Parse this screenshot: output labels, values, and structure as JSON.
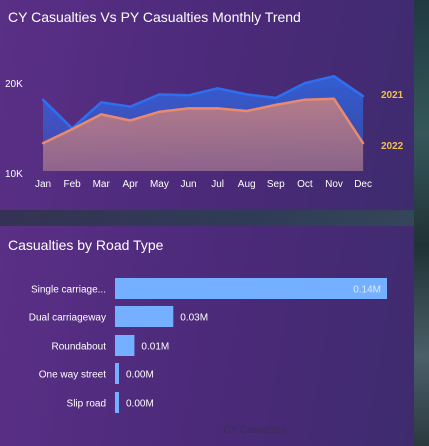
{
  "colors": {
    "cy_line": "#2d6ff0",
    "py_line": "#e98a6e",
    "bar": "#74b0ff",
    "series_label": "#f0c04d"
  },
  "trend": {
    "title": "CY Casualties Vs PY Casualties Monthly Trend"
  },
  "road_type": {
    "title": "Casualties by Road Type",
    "footer": "CY Casualties"
  },
  "chart_data": [
    {
      "type": "area",
      "title": "CY Casualties Vs PY Casualties Monthly Trend",
      "categories": [
        "Jan",
        "Feb",
        "Mar",
        "Apr",
        "May",
        "Jun",
        "Jul",
        "Aug",
        "Sep",
        "Oct",
        "Nov",
        "Dec"
      ],
      "y_ticks": [
        "20K",
        "10K"
      ],
      "ylim": [
        10000,
        21500
      ],
      "grid": false,
      "series": [
        {
          "name": "2021",
          "color": "#2d6ff0",
          "values": [
            18200,
            14900,
            17900,
            17400,
            18800,
            18700,
            19500,
            18800,
            18400,
            20100,
            20900,
            18600
          ]
        },
        {
          "name": "2022",
          "color": "#e98a6e",
          "values": [
            13200,
            14800,
            16500,
            15800,
            16800,
            17200,
            17200,
            16900,
            17600,
            18200,
            18300,
            13200
          ]
        }
      ]
    },
    {
      "type": "bar",
      "orientation": "horizontal",
      "title": "Casualties by Road Type",
      "xlabel": "CY Casualties",
      "categories": [
        "Single carriage...",
        "Dual carriageway",
        "Roundabout",
        "One way street",
        "Slip road"
      ],
      "values": [
        0.14,
        0.03,
        0.01,
        0.0,
        0.0
      ],
      "labels": [
        "0.14M",
        "0.03M",
        "0.01M",
        "0.00M",
        "0.00M"
      ],
      "unit": "M"
    }
  ]
}
